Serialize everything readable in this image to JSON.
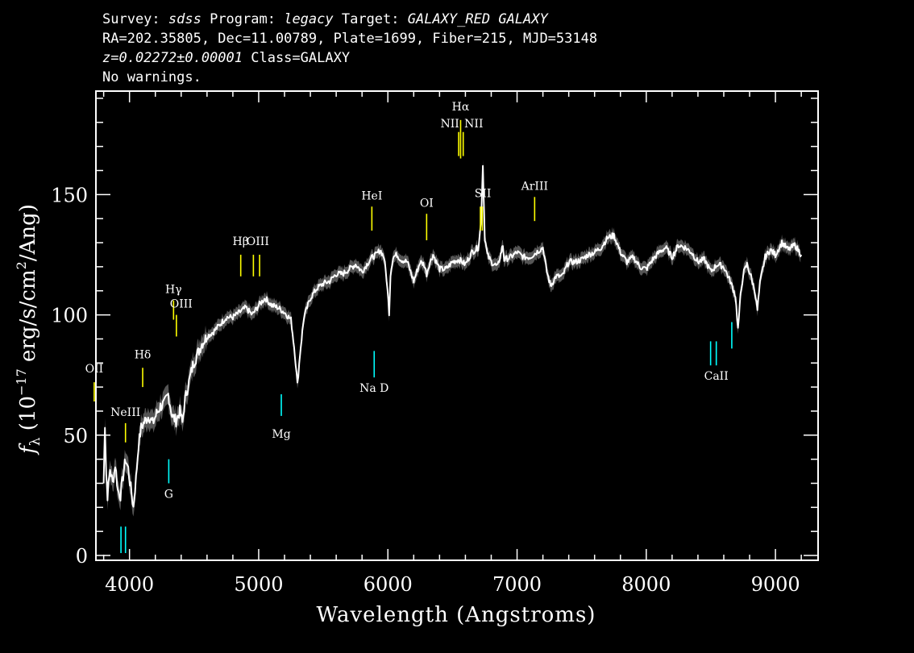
{
  "header": {
    "line1": {
      "p1": "Survey: ",
      "survey": "sdss",
      "p2": " Program: ",
      "program": "legacy",
      "p3": " Target: ",
      "target": "GALAXY_RED GALAXY"
    },
    "line2": "RA=202.35805, Dec=11.00789, Plate=1699, Fiber=215, MJD=53148",
    "line3": {
      "z": "z=0.02272±0.00001",
      "cls": " Class=GALAXY"
    },
    "line4": "No warnings."
  },
  "chart_data": {
    "type": "line",
    "xlabel": "Wavelength (Angstroms)",
    "ylabel": "f_λ (10^-17 erg/s/cm^2/Ang)",
    "ylabel_parts": {
      "f": "f",
      "lam": "λ",
      "a": " (10",
      "e1": "−17",
      "b": " erg/s/cm",
      "e2": "2",
      "c": "/Ang)"
    },
    "xlim": [
      3740,
      9330
    ],
    "ylim": [
      -2,
      193
    ],
    "xticks": [
      4000,
      5000,
      6000,
      7000,
      8000,
      9000
    ],
    "xtick_labels": [
      "4000",
      "5000",
      "6000",
      "7000",
      "8000",
      "9000"
    ],
    "yticks": [
      0,
      50,
      100,
      150
    ],
    "ytick_labels": [
      "0",
      "50",
      "100",
      "150"
    ],
    "colors": {
      "spectrum": "#ffffff",
      "error_band": "#555555",
      "emission": "#ffff00",
      "absorption": "#00ffff",
      "frame": "#ffffff"
    },
    "spectrum": {
      "x": [
        3800,
        3810,
        3820,
        3830,
        3850,
        3870,
        3890,
        3910,
        3930,
        3950,
        3970,
        3990,
        4010,
        4030,
        4050,
        4070,
        4090,
        4120,
        4150,
        4180,
        4210,
        4240,
        4270,
        4300,
        4330,
        4360,
        4390,
        4410,
        4430,
        4460,
        4490,
        4520,
        4560,
        4600,
        4650,
        4700,
        4750,
        4800,
        4850,
        4900,
        4950,
        5000,
        5050,
        5100,
        5150,
        5200,
        5250,
        5280,
        5300,
        5320,
        5350,
        5400,
        5450,
        5500,
        5550,
        5600,
        5650,
        5700,
        5750,
        5800,
        5850,
        5880,
        5910,
        5940,
        5970,
        5990,
        6010,
        6020,
        6040,
        6070,
        6100,
        6150,
        6200,
        6250,
        6280,
        6300,
        6320,
        6350,
        6400,
        6450,
        6500,
        6550,
        6600,
        6650,
        6700,
        6720,
        6735,
        6750,
        6770,
        6800,
        6850,
        6890,
        6900,
        6950,
        7000,
        7050,
        7100,
        7150,
        7200,
        7230,
        7260,
        7300,
        7350,
        7400,
        7450,
        7500,
        7550,
        7600,
        7650,
        7700,
        7750,
        7800,
        7850,
        7900,
        7950,
        8000,
        8050,
        8100,
        8150,
        8200,
        8250,
        8300,
        8350,
        8400,
        8450,
        8500,
        8550,
        8600,
        8650,
        8690,
        8710,
        8730,
        8750,
        8780,
        8810,
        8840,
        8860,
        8880,
        8920,
        8960,
        9000,
        9050,
        9100,
        9150,
        9200
      ],
      "y": [
        30,
        55,
        34,
        25,
        36,
        30,
        38,
        27,
        25,
        33,
        40,
        36,
        28,
        20,
        32,
        46,
        53,
        56,
        58,
        55,
        59,
        62,
        63,
        67,
        58,
        56,
        60,
        55,
        65,
        72,
        79,
        83,
        88,
        91,
        93,
        96,
        99,
        99,
        101,
        103,
        100,
        104,
        107,
        104,
        103,
        101,
        98,
        84,
        71,
        84,
        99,
        107,
        111,
        113,
        114,
        117,
        117,
        119,
        121,
        118,
        122,
        124,
        125,
        127,
        124,
        115,
        101,
        117,
        124,
        125,
        123,
        122,
        114,
        122,
        121,
        117,
        121,
        125,
        119,
        119,
        122,
        123,
        121,
        126,
        128,
        138,
        162,
        132,
        125,
        122,
        120,
        129,
        123,
        124,
        126,
        124,
        124,
        126,
        128,
        118,
        112,
        116,
        116,
        122,
        122,
        123,
        125,
        126,
        128,
        132,
        133,
        126,
        122,
        124,
        120,
        119,
        123,
        126,
        128,
        124,
        129,
        128,
        126,
        122,
        123,
        118,
        121,
        120,
        114,
        108,
        94,
        108,
        117,
        121,
        116,
        110,
        102,
        113,
        124,
        127,
        125,
        130,
        127,
        129,
        125
      ]
    },
    "emission_lines": [
      {
        "label": "OII",
        "wave": 3727,
        "y0": 64,
        "y1": 72,
        "lx": 3727,
        "ly": 76
      },
      {
        "label": "NeIII",
        "wave": 3969,
        "y0": 47,
        "y1": 55,
        "lx": 3969,
        "ly": 58
      },
      {
        "label": "Hδ",
        "wave": 4102,
        "y0": 70,
        "y1": 78,
        "lx": 4102,
        "ly": 82
      },
      {
        "label": "Hγ",
        "wave": 4341,
        "y0": 98,
        "y1": 106,
        "lx": 4341,
        "ly": 109
      },
      {
        "label": "OIII",
        "wave": 4363,
        "y0": 91,
        "y1": 100,
        "lx": 4400,
        "ly": 103
      },
      {
        "label": "Hβ",
        "wave": 4861,
        "y0": 116,
        "y1": 125,
        "lx": 4861,
        "ly": 129
      },
      {
        "label": "OIII",
        "wave": 4959,
        "y0": 116,
        "y1": 125,
        "lx": 4993,
        "ly": 129
      },
      {
        "label": "OIII",
        "wave": 5007,
        "y0": 116,
        "y1": 125
      },
      {
        "label": "HeI",
        "wave": 5876,
        "y0": 135,
        "y1": 145,
        "lx": 5876,
        "ly": 148
      },
      {
        "label": "OI",
        "wave": 6300,
        "y0": 131,
        "y1": 142,
        "lx": 6300,
        "ly": 145
      },
      {
        "label": "NII",
        "wave": 6548,
        "y0": 166,
        "y1": 176,
        "lx": 6480,
        "ly": 178
      },
      {
        "label": "Hα",
        "wave": 6563,
        "y0": 165,
        "y1": 181,
        "lx": 6563,
        "ly": 185
      },
      {
        "label": "NII",
        "wave": 6583,
        "y0": 166,
        "y1": 176,
        "lx": 6665,
        "ly": 178
      },
      {
        "label": "SII",
        "wave": 6716,
        "y0": 135,
        "y1": 145,
        "lx": 6735,
        "ly": 149
      },
      {
        "label": "SII",
        "wave": 6731,
        "y0": 135,
        "y1": 145
      },
      {
        "label": "ArIII",
        "wave": 7136,
        "y0": 139,
        "y1": 149,
        "lx": 7136,
        "ly": 152
      }
    ],
    "absorption_lines": [
      {
        "label": "",
        "wave": 3934,
        "y0": 1,
        "y1": 12
      },
      {
        "label": "",
        "wave": 3969,
        "y0": 1,
        "y1": 12
      },
      {
        "label": "G",
        "wave": 4304,
        "y0": 30,
        "y1": 40,
        "lx": 4304,
        "ly": 24
      },
      {
        "label": "Mg",
        "wave": 5175,
        "y0": 58,
        "y1": 67,
        "lx": 5175,
        "ly": 49
      },
      {
        "label": "Na D",
        "wave": 5894,
        "y0": 74,
        "y1": 85,
        "lx": 5894,
        "ly": 68
      },
      {
        "label": "CaII",
        "wave": 8498,
        "y0": 79,
        "y1": 89,
        "lx": 8542,
        "ly": 73
      },
      {
        "label": "",
        "wave": 8542,
        "y0": 79,
        "y1": 89
      },
      {
        "label": "",
        "wave": 8662,
        "y0": 86,
        "y1": 97
      }
    ]
  }
}
